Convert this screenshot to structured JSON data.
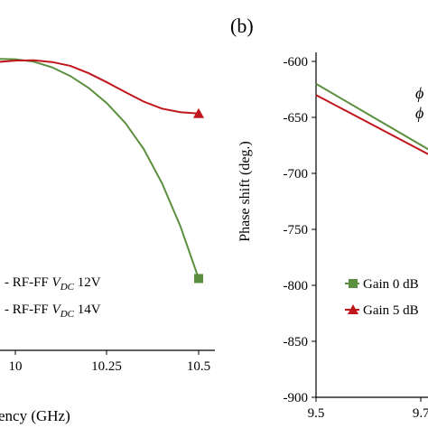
{
  "chart_data": [
    {
      "type": "line",
      "title": "",
      "xlabel": "ency (GHz)",
      "ylabel": "",
      "xlim": [
        9.91,
        10.56
      ],
      "ylim": [
        0,
        1
      ],
      "x_ticks": [
        10,
        10.25,
        10.5
      ],
      "x_tick_labels": [
        "10",
        "10.25",
        "10.5"
      ],
      "grid": false,
      "legend_placement": "bottom-left (cropped)",
      "legend_entries": [
        "- RF-FF V_DC 12V",
        "- RF-FF V_DC 14V"
      ],
      "series": [
        {
          "color": "#5a8f3d",
          "marker": "square",
          "x": [
            9.91,
            9.95,
            10.0,
            10.05,
            10.1,
            10.15,
            10.2,
            10.25,
            10.3,
            10.35,
            10.4,
            10.45,
            10.5
          ],
          "y": [
            0.825,
            0.832,
            0.831,
            0.824,
            0.808,
            0.783,
            0.749,
            0.705,
            0.649,
            0.575,
            0.477,
            0.355,
            0.205
          ]
        },
        {
          "color": "#c0161c",
          "marker": "triangle",
          "x": [
            9.91,
            9.95,
            10.0,
            10.05,
            10.1,
            10.15,
            10.2,
            10.25,
            10.3,
            10.35,
            10.4,
            10.45,
            10.5
          ],
          "y": [
            0.817,
            0.823,
            0.827,
            0.828,
            0.823,
            0.812,
            0.791,
            0.765,
            0.737,
            0.71,
            0.69,
            0.68,
            0.676
          ]
        }
      ]
    },
    {
      "type": "line",
      "title": "",
      "panel_label": "(b)",
      "xlabel": "",
      "ylabel": "Phase shift (deg.)",
      "xlim": [
        9.5,
        9.88
      ],
      "ylim": [
        -900,
        -600
      ],
      "y_ticks": [
        -900,
        -850,
        -800,
        -750,
        -700,
        -650,
        -600
      ],
      "y_tick_labels": [
        "-900",
        "-850",
        "-800",
        "-750",
        "-700",
        "-650",
        "-600"
      ],
      "x_ticks": [
        9.5,
        9.75
      ],
      "x_tick_labels": [
        "9.5",
        "9.75"
      ],
      "grid": false,
      "legend_placement": "bottom-right (cropped)",
      "legend_entries": [
        "Gain 0 dB",
        "Gain 5 dB"
      ],
      "annotation_glyphs": [
        "ϕ",
        "ϕ"
      ],
      "series": [
        {
          "name": "Gain 0 dB",
          "color": "#5a8f3d",
          "marker": "square",
          "x": [
            9.5,
            9.88
          ],
          "y": [
            -620,
            -703
          ]
        },
        {
          "name": "Gain 5 dB",
          "color": "#c0161c",
          "marker": "triangle",
          "x": [
            9.5,
            9.88
          ],
          "y": [
            -630,
            -705
          ]
        }
      ]
    }
  ]
}
